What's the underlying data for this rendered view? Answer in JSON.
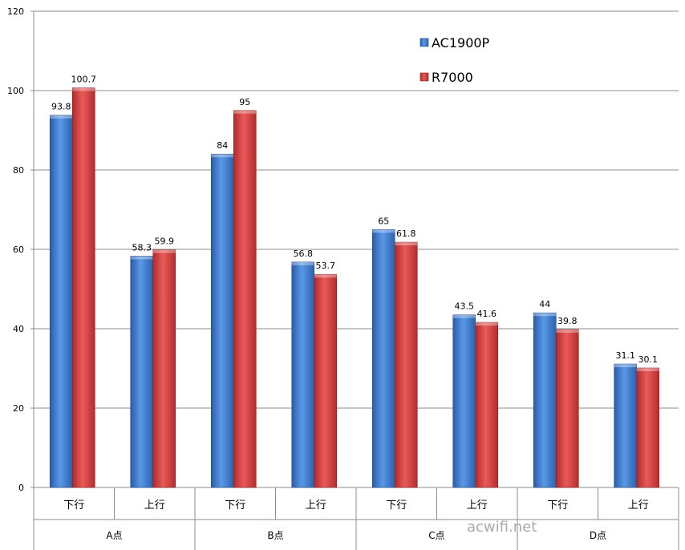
{
  "chart_data": {
    "type": "bar",
    "categories": [
      {
        "group": "A点",
        "sub": "下行"
      },
      {
        "group": "A点",
        "sub": "上行"
      },
      {
        "group": "B点",
        "sub": "下行"
      },
      {
        "group": "B点",
        "sub": "上行"
      },
      {
        "group": "C点",
        "sub": "下行"
      },
      {
        "group": "C点",
        "sub": "上行"
      },
      {
        "group": "D点",
        "sub": "下行"
      },
      {
        "group": "D点",
        "sub": "上行"
      }
    ],
    "groups": [
      "A点",
      "B点",
      "C点",
      "D点"
    ],
    "series": [
      {
        "name": "AC1900P",
        "color": "#3a78c9",
        "values": [
          93.8,
          58.3,
          84,
          56.8,
          65,
          43.5,
          44,
          31.1
        ]
      },
      {
        "name": "R7000",
        "color": "#d43a3a",
        "values": [
          100.7,
          59.9,
          95,
          53.7,
          61.8,
          41.6,
          39.8,
          30.1
        ]
      }
    ],
    "ylim": [
      0,
      120
    ],
    "yticks": [
      0,
      20,
      40,
      60,
      80,
      100,
      120
    ],
    "grid": true,
    "legend_position": "top-right",
    "title": "",
    "xlabel": "",
    "ylabel": ""
  },
  "watermark": "acwifi.net"
}
